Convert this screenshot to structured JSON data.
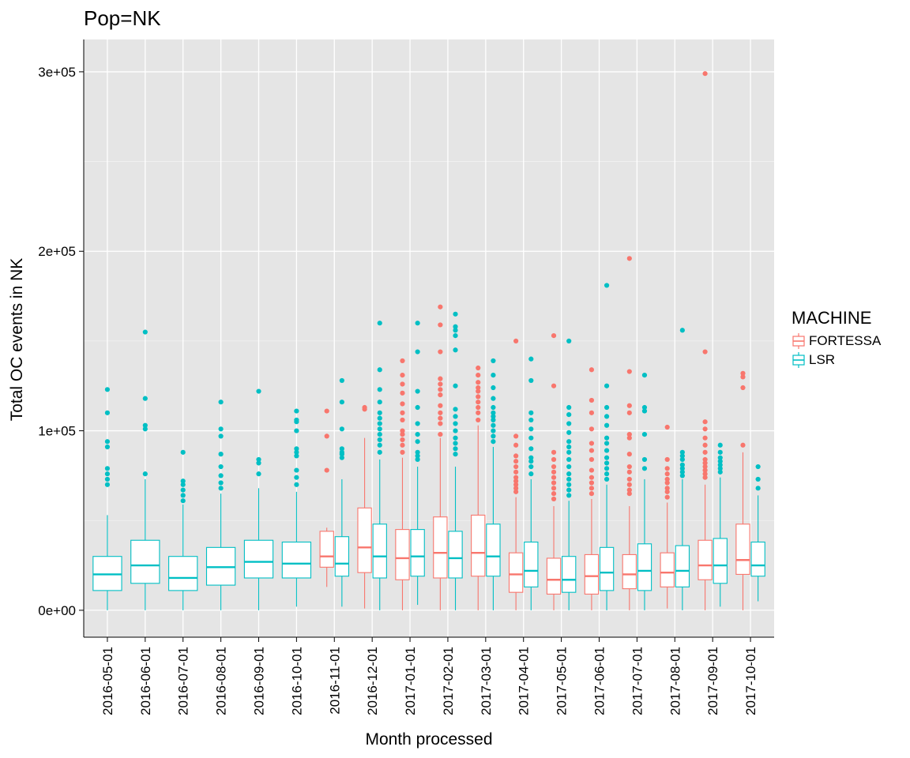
{
  "chart_data": {
    "type": "boxplot",
    "title": "Pop=NK",
    "xlabel": "Month processed",
    "ylabel": "Total OC events in NK",
    "ylim": [
      -15000,
      318000
    ],
    "y_ticks": [
      0,
      100000,
      200000,
      300000
    ],
    "y_tick_labels": [
      "0e+00",
      "1e+05",
      "2e+05",
      "3e+05"
    ],
    "grid": true,
    "legend": {
      "title": "MACHINE",
      "position": "right"
    },
    "categories": [
      "2016-05-01",
      "2016-06-01",
      "2016-07-01",
      "2016-08-01",
      "2016-09-01",
      "2016-10-01",
      "2016-11-01",
      "2016-12-01",
      "2017-01-01",
      "2017-02-01",
      "2017-03-01",
      "2017-04-01",
      "2017-05-01",
      "2017-06-01",
      "2017-07-01",
      "2017-08-01",
      "2017-09-01",
      "2017-10-01"
    ],
    "series": [
      {
        "name": "FORTESSA",
        "color": "#F8766D",
        "boxes": [
          null,
          null,
          null,
          null,
          null,
          null,
          {
            "min": 13000,
            "q1": 24000,
            "median": 30000,
            "q3": 44000,
            "max": 46000,
            "outliers": [
              78000,
              97000,
              111000
            ]
          },
          {
            "min": 1000,
            "q1": 21000,
            "median": 35000,
            "q3": 57000,
            "max": 96000,
            "outliers": [
              112000,
              113000
            ]
          },
          {
            "min": 0,
            "q1": 17000,
            "median": 29000,
            "q3": 45000,
            "max": 85000,
            "outliers": [
              88000,
              92000,
              95000,
              98000,
              100000,
              106000,
              110000,
              115000,
              121000,
              126000,
              131000,
              139000
            ]
          },
          {
            "min": 0,
            "q1": 18000,
            "median": 32000,
            "q3": 52000,
            "max": 96000,
            "outliers": [
              98000,
              104000,
              107000,
              110000,
              114000,
              120000,
              123000,
              126000,
              129000,
              144000,
              159000,
              169000
            ]
          },
          {
            "min": 0,
            "q1": 19000,
            "median": 32000,
            "q3": 53000,
            "max": 103000,
            "outliers": [
              106000,
              110000,
              113000,
              116000,
              119000,
              122000,
              124000,
              127000,
              131000,
              135000
            ]
          },
          {
            "min": 0,
            "q1": 10000,
            "median": 20000,
            "q3": 32000,
            "max": 63000,
            "outliers": [
              66000,
              68000,
              70000,
              72000,
              74000,
              77000,
              80000,
              83000,
              86000,
              92000,
              97000,
              150000
            ]
          },
          {
            "min": 0,
            "q1": 9000,
            "median": 17000,
            "q3": 29000,
            "max": 58000,
            "outliers": [
              62000,
              65000,
              68000,
              71000,
              74000,
              77000,
              80000,
              84000,
              88000,
              125000,
              153000
            ]
          },
          {
            "min": 0,
            "q1": 9000,
            "median": 19000,
            "q3": 31000,
            "max": 62000,
            "outliers": [
              65000,
              68000,
              71000,
              74000,
              78000,
              84000,
              89000,
              93000,
              101000,
              110000,
              117000,
              134000
            ]
          },
          {
            "min": 0,
            "q1": 12000,
            "median": 20000,
            "q3": 31000,
            "max": 58000,
            "outliers": [
              65000,
              67000,
              70000,
              73000,
              77000,
              80000,
              87000,
              96000,
              98000,
              110000,
              114000,
              133000,
              196000
            ]
          },
          {
            "min": 1000,
            "q1": 13000,
            "median": 21000,
            "q3": 32000,
            "max": 60000,
            "outliers": [
              63000,
              66000,
              68000,
              71000,
              73000,
              76000,
              79000,
              84000,
              102000
            ]
          },
          {
            "min": 0,
            "q1": 17000,
            "median": 25000,
            "q3": 39000,
            "max": 70000,
            "outliers": [
              74000,
              76000,
              78000,
              80000,
              82000,
              84000,
              88000,
              92000,
              96000,
              101000,
              105000,
              144000,
              299000
            ]
          },
          {
            "min": 0,
            "q1": 20000,
            "median": 28000,
            "q3": 48000,
            "max": 88000,
            "outliers": [
              92000,
              124000,
              130000,
              132000
            ]
          }
        ]
      },
      {
        "name": "LSR",
        "color": "#00BFC4",
        "boxes": [
          {
            "min": 0,
            "q1": 11000,
            "median": 20000,
            "q3": 30000,
            "max": 53000,
            "outliers": [
              70000,
              73000,
              76000,
              79000,
              91000,
              94000,
              110000,
              123000
            ]
          },
          {
            "min": 0,
            "q1": 15000,
            "median": 25000,
            "q3": 39000,
            "max": 73000,
            "outliers": [
              76000,
              101000,
              103000,
              118000,
              155000
            ]
          },
          {
            "min": 0,
            "q1": 11000,
            "median": 18000,
            "q3": 30000,
            "max": 59000,
            "outliers": [
              61000,
              64000,
              67000,
              70000,
              72000,
              88000
            ]
          },
          {
            "min": 0,
            "q1": 14000,
            "median": 24000,
            "q3": 35000,
            "max": 65000,
            "outliers": [
              68000,
              71000,
              75000,
              80000,
              87000,
              97000,
              101000,
              116000
            ]
          },
          {
            "min": 0,
            "q1": 18000,
            "median": 27000,
            "q3": 39000,
            "max": 68000,
            "outliers": [
              76000,
              82000,
              84000,
              122000
            ]
          },
          {
            "min": 2000,
            "q1": 18000,
            "median": 26000,
            "q3": 38000,
            "max": 66000,
            "outliers": [
              70000,
              74000,
              78000,
              86000,
              88000,
              90000,
              100000,
              105000,
              106000,
              111000
            ]
          },
          {
            "min": 2000,
            "q1": 19000,
            "median": 26000,
            "q3": 41000,
            "max": 73000,
            "outliers": [
              85000,
              87000,
              88000,
              90000,
              101000,
              116000,
              128000
            ]
          },
          {
            "min": 0,
            "q1": 18000,
            "median": 30000,
            "q3": 48000,
            "max": 84000,
            "outliers": [
              88000,
              92000,
              95000,
              98000,
              101000,
              104000,
              107000,
              110000,
              116000,
              123000,
              134000,
              160000
            ]
          },
          {
            "min": 3000,
            "q1": 19000,
            "median": 30000,
            "q3": 45000,
            "max": 80000,
            "outliers": [
              84000,
              86000,
              88000,
              94000,
              98000,
              104000,
              113000,
              122000,
              144000,
              160000
            ]
          },
          {
            "min": 0,
            "q1": 18000,
            "median": 29000,
            "q3": 44000,
            "max": 80000,
            "outliers": [
              87000,
              90000,
              93000,
              96000,
              100000,
              104000,
              108000,
              112000,
              125000,
              145000,
              153000,
              156000,
              158000,
              165000
            ]
          },
          {
            "min": 0,
            "q1": 19000,
            "median": 30000,
            "q3": 48000,
            "max": 91000,
            "outliers": [
              94000,
              97000,
              100000,
              103000,
              106000,
              108000,
              110000,
              113000,
              118000,
              124000,
              131000,
              139000
            ]
          },
          {
            "min": 0,
            "q1": 13000,
            "median": 22000,
            "q3": 38000,
            "max": 73000,
            "outliers": [
              76000,
              80000,
              83000,
              85000,
              90000,
              96000,
              101000,
              106000,
              110000,
              128000,
              140000
            ]
          },
          {
            "min": 0,
            "q1": 10000,
            "median": 17000,
            "q3": 30000,
            "max": 61000,
            "outliers": [
              64000,
              67000,
              70000,
              73000,
              76000,
              80000,
              84000,
              88000,
              91000,
              94000,
              99000,
              104000,
              109000,
              113000,
              150000
            ]
          },
          {
            "min": 0,
            "q1": 11000,
            "median": 21000,
            "q3": 35000,
            "max": 70000,
            "outliers": [
              73000,
              76000,
              79000,
              82000,
              85000,
              89000,
              93000,
              96000,
              103000,
              108000,
              113000,
              125000,
              181000
            ]
          },
          {
            "min": 0,
            "q1": 11000,
            "median": 22000,
            "q3": 37000,
            "max": 73000,
            "outliers": [
              79000,
              84000,
              98000,
              111000,
              113000,
              131000
            ]
          },
          {
            "min": 0,
            "q1": 13000,
            "median": 22000,
            "q3": 36000,
            "max": 73000,
            "outliers": [
              75000,
              77000,
              79000,
              81000,
              84000,
              86000,
              88000,
              156000
            ]
          },
          {
            "min": 2000,
            "q1": 15000,
            "median": 25000,
            "q3": 40000,
            "max": 74000,
            "outliers": [
              77000,
              79000,
              81000,
              83000,
              85000,
              88000,
              92000
            ]
          },
          {
            "min": 5000,
            "q1": 19000,
            "median": 25000,
            "q3": 38000,
            "max": 64000,
            "outliers": [
              68000,
              73000,
              80000
            ]
          }
        ]
      }
    ]
  }
}
